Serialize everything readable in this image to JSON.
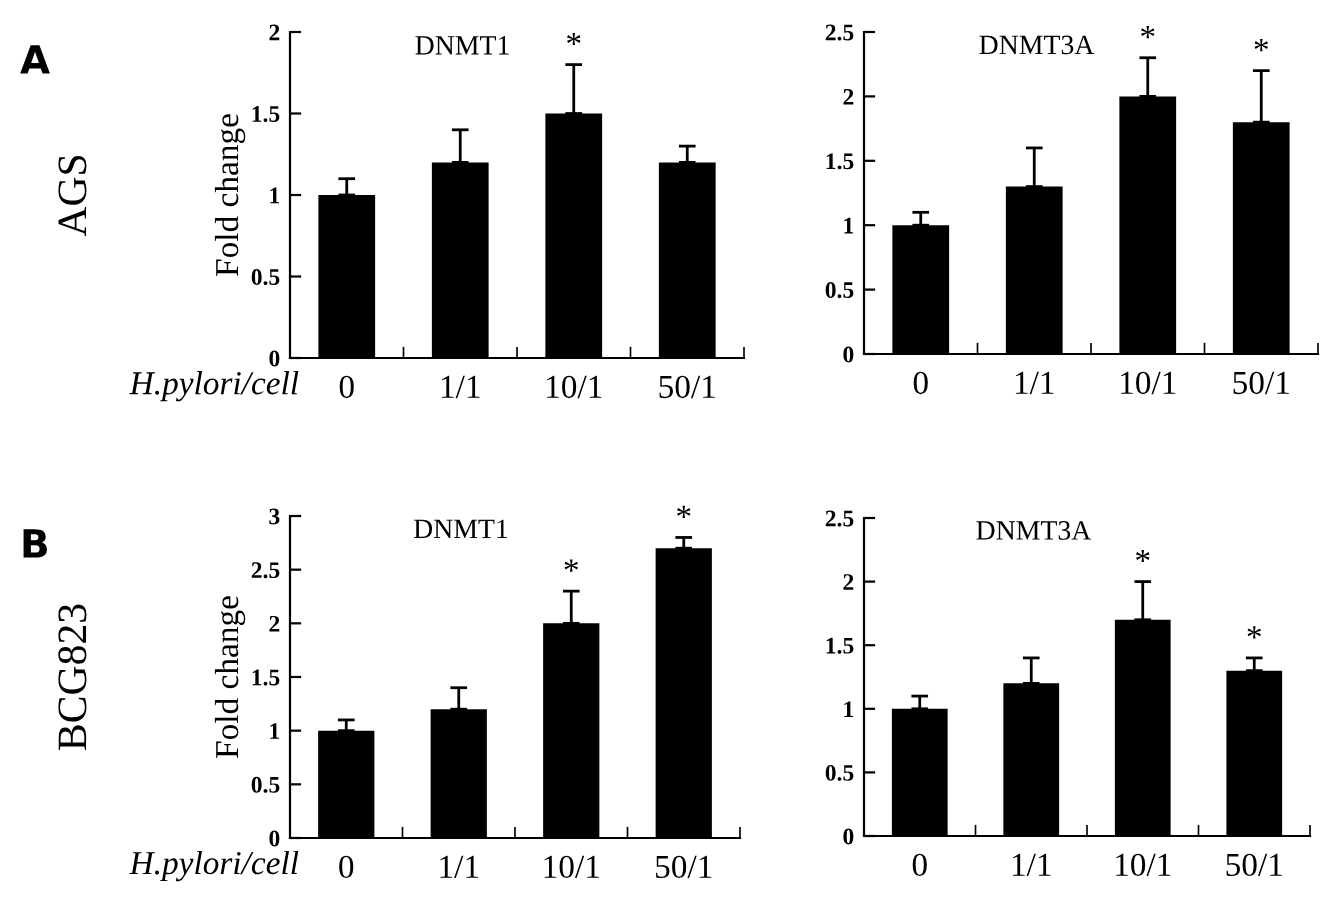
{
  "chart_data": [
    {
      "type": "bar",
      "title": "DNMT1",
      "xlabel": "H.pylori/cell",
      "ylabel": "Fold change",
      "categories": [
        "0",
        "1/1",
        "10/1",
        "50/1"
      ],
      "values": [
        1,
        1.2,
        1.5,
        1.2
      ],
      "errors": [
        0.1,
        0.2,
        0.3,
        0.1
      ],
      "color": "#000000",
      "ylim": [
        0,
        2
      ],
      "yticks": [
        0,
        0.5,
        1,
        1.5,
        2
      ],
      "grid": false,
      "annotations": [
        "A",
        "AGS",
        {
          "text": "*",
          "x": "10/1",
          "y": 1.8
        }
      ]
    },
    {
      "type": "bar",
      "title": "DNMT3A",
      "categories": [
        "0",
        "1/1",
        "10/1",
        "50/1"
      ],
      "values": [
        1,
        1.3,
        2.0,
        1.8
      ],
      "errors": [
        0.1,
        0.3,
        0.3,
        0.4
      ],
      "color": "#000000",
      "ylim": [
        0,
        2.5
      ],
      "yticks": [
        0,
        0.5,
        1,
        1.5,
        2,
        2.5
      ],
      "grid": false,
      "annotations": [
        {
          "text": "*",
          "x": "10/1",
          "y": 2.3
        },
        {
          "text": "*",
          "x": "50/1",
          "y": 2.2
        }
      ]
    },
    {
      "type": "bar",
      "title": "DNMT1",
      "xlabel": "H.pylori/cell",
      "ylabel": "Fold change",
      "categories": [
        "0",
        "1/1",
        "10/1",
        "50/1"
      ],
      "values": [
        1,
        1.2,
        2,
        2.7
      ],
      "errors": [
        0.1,
        0.2,
        0.3,
        0.1
      ],
      "color": "#000000",
      "ylim": [
        0,
        3
      ],
      "yticks": [
        0,
        0.5,
        1,
        1.5,
        2,
        2.5,
        3
      ],
      "grid": false,
      "annotations": [
        "B",
        "BCG823",
        {
          "text": "*",
          "x": "10/1",
          "y": 2.3
        },
        {
          "text": "*",
          "x": "50/1",
          "y": 2.8
        }
      ]
    },
    {
      "type": "bar",
      "title": "DNMT3A",
      "categories": [
        "0",
        "1/1",
        "10/1",
        "50/1"
      ],
      "values": [
        1,
        1.2,
        1.7,
        1.3
      ],
      "errors": [
        0.1,
        0.2,
        0.3,
        0.1
      ],
      "color": "#000000",
      "ylim": [
        0,
        2.5
      ],
      "yticks": [
        0,
        0.5,
        1,
        1.5,
        2,
        2.5
      ],
      "grid": false,
      "annotations": [
        {
          "text": "*",
          "x": "10/1",
          "y": 2.0
        },
        {
          "text": "*",
          "x": "50/1",
          "y": 1.4
        }
      ]
    }
  ]
}
